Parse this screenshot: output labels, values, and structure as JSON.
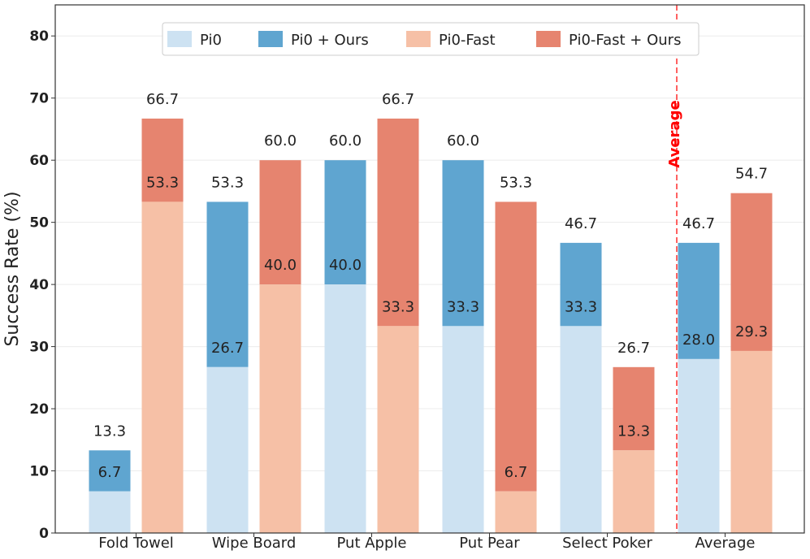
{
  "chart_data": {
    "type": "bar",
    "stacked": true,
    "title": "",
    "xlabel": "",
    "ylabel": "Success Rate (%)",
    "ylim": [
      0,
      85
    ],
    "yticks": [
      "0",
      "10",
      "20",
      "30",
      "40",
      "50",
      "60",
      "70",
      "80"
    ],
    "grid": true,
    "legend_position": "top-center",
    "categories": [
      "Fold Towel",
      "Wipe Board",
      "Put Apple",
      "Put Pear",
      "Select Poker",
      "Average"
    ],
    "series": [
      {
        "name": "Pi0",
        "color": "#cde2f2",
        "group": "pi0",
        "values": [
          6.7,
          26.7,
          40.0,
          33.3,
          33.3,
          28.0
        ]
      },
      {
        "name": "Pi0 + Ours",
        "color": "#5fa5d0",
        "group": "pi0",
        "totals": [
          13.3,
          53.3,
          60.0,
          60.0,
          46.7,
          46.7
        ]
      },
      {
        "name": "Pi0-Fast",
        "color": "#f6c0a6",
        "group": "fast",
        "values": [
          53.3,
          40.0,
          33.3,
          6.7,
          13.3,
          29.3
        ]
      },
      {
        "name": "Pi0-Fast + Ours",
        "color": "#e6846f",
        "group": "fast",
        "totals": [
          66.7,
          60.0,
          66.7,
          53.3,
          26.7,
          54.7
        ]
      }
    ],
    "base_labels": {
      "pi0": [
        "6.7",
        "26.7",
        "40.0",
        "33.3",
        "33.3",
        "28.0"
      ],
      "fast": [
        "53.3",
        "40.0",
        "33.3",
        "6.7",
        "13.3",
        "29.3"
      ]
    },
    "total_labels": {
      "pi0": [
        "13.3",
        "53.3",
        "60.0",
        "60.0",
        "46.7",
        "46.7"
      ],
      "fast": [
        "66.7",
        "60.0",
        "66.7",
        "53.3",
        "26.7",
        "54.7"
      ]
    },
    "annotations": [
      {
        "text": "Average",
        "color": "#ff0000",
        "type": "vertical-dashed-line",
        "position": "between Select Poker and Average"
      }
    ]
  }
}
